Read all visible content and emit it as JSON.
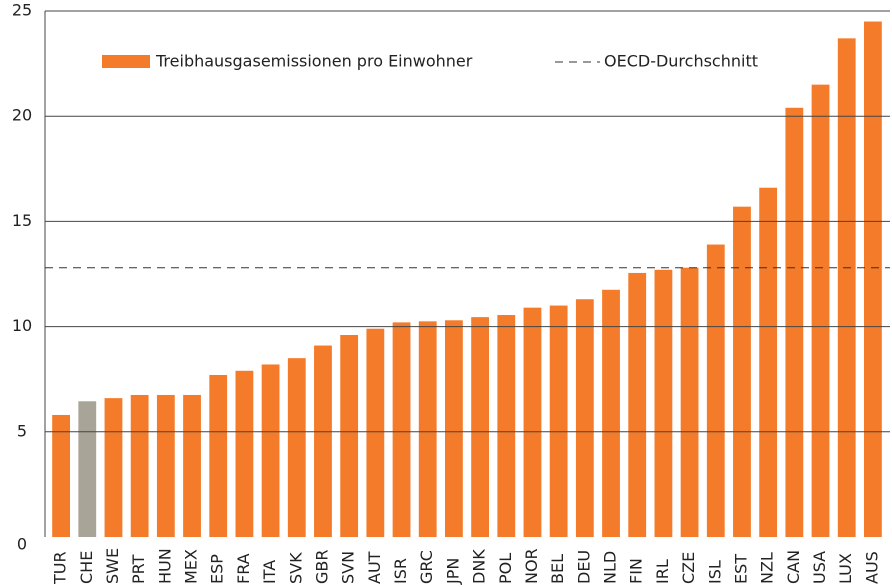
{
  "chart_data": {
    "type": "bar",
    "categories": [
      "TUR",
      "CHE",
      "SWE",
      "PRT",
      "HUN",
      "MEX",
      "ESP",
      "FRA",
      "ITA",
      "SVK",
      "GBR",
      "SVN",
      "AUT",
      "ISR",
      "GRC",
      "JPN",
      "DNK",
      "POL",
      "NOR",
      "BEL",
      "DEU",
      "NLD",
      "FIN",
      "IRL",
      "CZE",
      "ISL",
      "EST",
      "NZL",
      "CAN",
      "USA",
      "LUX",
      "AUS"
    ],
    "series": [
      {
        "name": "Treibhausgasemissionen pro Einwohner",
        "color": "#f47b2a",
        "values": [
          5.8,
          6.45,
          6.6,
          6.75,
          6.75,
          6.75,
          7.7,
          7.9,
          8.2,
          8.5,
          9.1,
          9.6,
          9.9,
          10.2,
          10.25,
          10.3,
          10.45,
          10.55,
          10.9,
          11.0,
          11.3,
          11.75,
          12.55,
          12.7,
          12.8,
          13.9,
          15.7,
          16.6,
          20.4,
          21.5,
          23.7,
          24.5
        ],
        "colors": [
          "#f47b2a",
          "#a8a497",
          "#f47b2a",
          "#f47b2a",
          "#f47b2a",
          "#f47b2a",
          "#f47b2a",
          "#f47b2a",
          "#f47b2a",
          "#f47b2a",
          "#f47b2a",
          "#f47b2a",
          "#f47b2a",
          "#f47b2a",
          "#f47b2a",
          "#f47b2a",
          "#f47b2a",
          "#f47b2a",
          "#f47b2a",
          "#f47b2a",
          "#f47b2a",
          "#f47b2a",
          "#f47b2a",
          "#f47b2a",
          "#f47b2a",
          "#f47b2a",
          "#f47b2a",
          "#f47b2a",
          "#f47b2a",
          "#f47b2a",
          "#f47b2a",
          "#f47b2a"
        ]
      }
    ],
    "reference_line": {
      "name": "OECD-Durchschnitt",
      "value": 12.8,
      "color": "#333333"
    },
    "ylim": [
      0,
      25
    ],
    "yticks": [
      0,
      5,
      10,
      15,
      20,
      25
    ],
    "grid": true
  }
}
